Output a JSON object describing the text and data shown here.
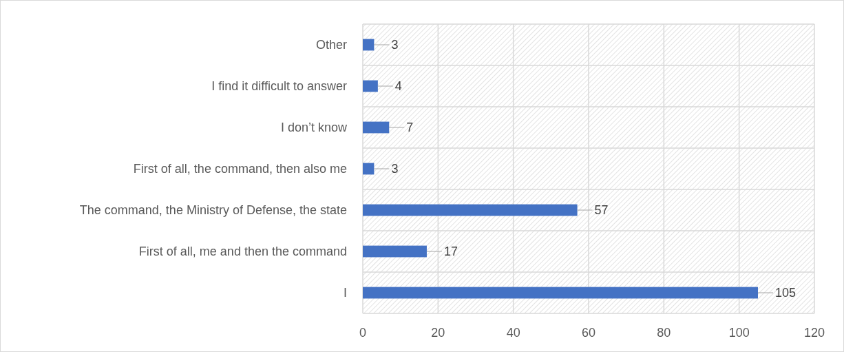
{
  "chart_data": {
    "type": "bar",
    "orientation": "horizontal",
    "categories": [
      "Other",
      "I find it difficult to answer",
      "I don’t know",
      "First of all, the command, then also me",
      "The command, the Ministry of Defense, the state",
      "First of all, me and then the command",
      "I"
    ],
    "values": [
      3,
      4,
      7,
      3,
      57,
      17,
      105
    ],
    "color": "#4472c4",
    "xlim": [
      0,
      120
    ],
    "xticks": [
      0,
      20,
      40,
      60,
      80,
      100,
      120
    ],
    "grid": true,
    "data_labels": true
  }
}
